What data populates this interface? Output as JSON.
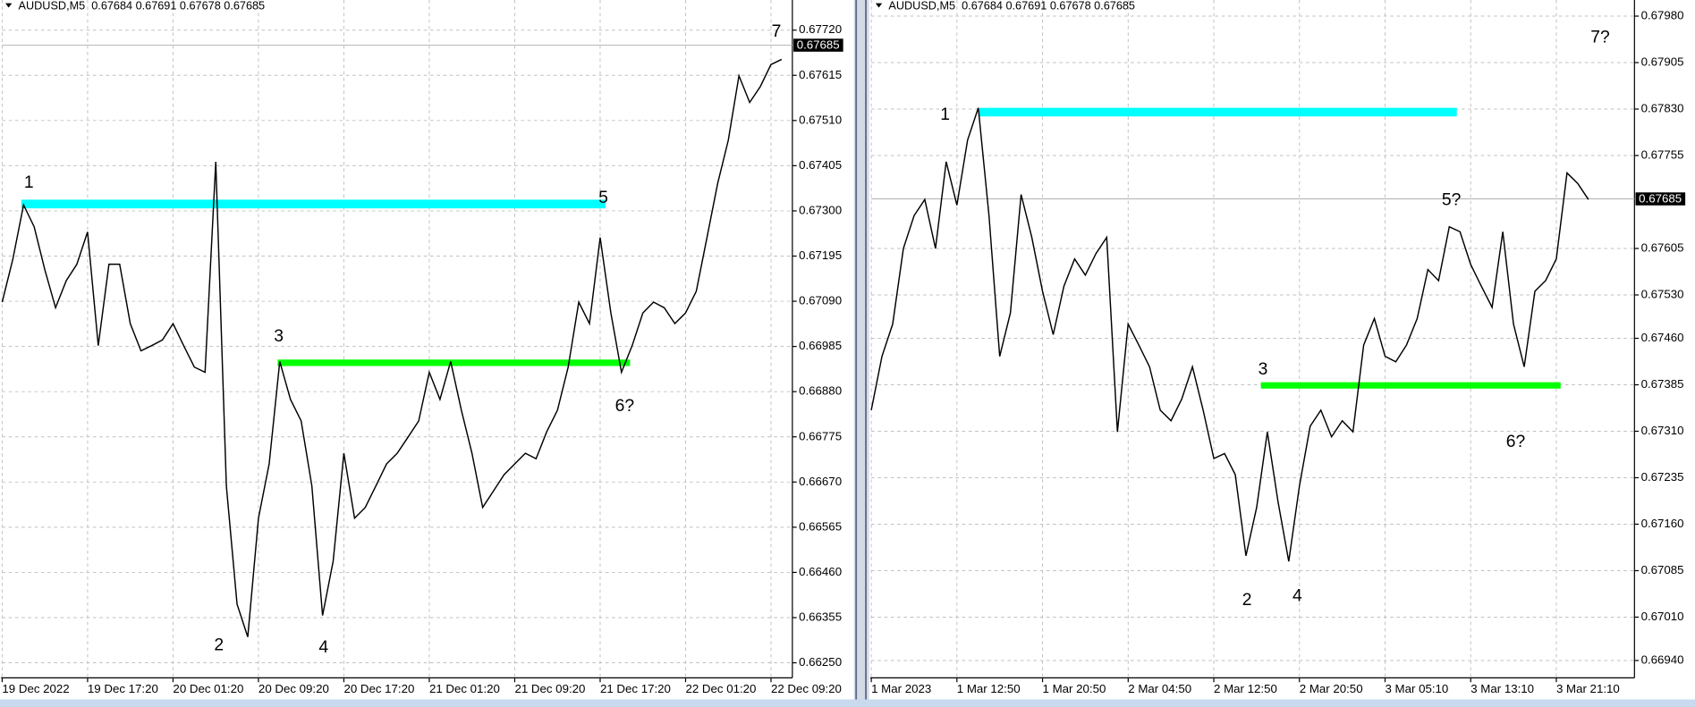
{
  "chart_data": [
    {
      "type": "line",
      "title": "AUDUSD,M5  0.67684 0.67691 0.67678 0.67685",
      "color": "#000000",
      "values": [
        0.67088,
        0.67188,
        0.67314,
        0.67263,
        0.67163,
        0.67075,
        0.67138,
        0.67176,
        0.67251,
        0.66987,
        0.67176,
        0.67176,
        0.67038,
        0.66975,
        0.66987,
        0.67,
        0.67038,
        0.66987,
        0.66937,
        0.66925,
        0.67414,
        0.66661,
        0.66386,
        0.6631,
        0.66586,
        0.66712,
        0.6695,
        0.66862,
        0.66812,
        0.66661,
        0.6636,
        0.66486,
        0.66737,
        0.66586,
        0.66611,
        0.66661,
        0.66712,
        0.66737,
        0.66774,
        0.66812,
        0.66925,
        0.66862,
        0.6695,
        0.66837,
        0.66737,
        0.66611,
        0.66649,
        0.66687,
        0.66712,
        0.66737,
        0.66724,
        0.66787,
        0.66837,
        0.66937,
        0.67088,
        0.67038,
        0.67238,
        0.67063,
        0.66925,
        0.66987,
        0.67063,
        0.67088,
        0.67075,
        0.67038,
        0.67063,
        0.67113,
        0.67238,
        0.67364,
        0.67464,
        0.67614,
        0.67552,
        0.67589,
        0.6764,
        0.67652
      ],
      "xlim": [
        0,
        74
      ],
      "xticks": [
        {
          "value": 0,
          "label": "19 Dec 2022"
        },
        {
          "value": 8,
          "label": "19 Dec 17:20"
        },
        {
          "value": 16,
          "label": "20 Dec 01:20"
        },
        {
          "value": 24,
          "label": "20 Dec 09:20"
        },
        {
          "value": 32,
          "label": "20 Dec 17:20"
        },
        {
          "value": 40,
          "label": "21 Dec 01:20"
        },
        {
          "value": 48,
          "label": "21 Dec 09:20"
        },
        {
          "value": 56,
          "label": "21 Dec 17:20"
        },
        {
          "value": 64,
          "label": "22 Dec 01:20"
        },
        {
          "value": 72,
          "label": "22 Dec 09:20"
        }
      ],
      "ylim": [
        0.66215,
        0.6779
      ],
      "yticks": [
        {
          "value": 0.6772,
          "label": "0.67720"
        },
        0.67615,
        {
          "value": 0.6751,
          "label": "0.67510"
        },
        0.67405,
        {
          "value": 0.673,
          "label": "0.67300"
        },
        0.67195,
        {
          "value": 0.6709,
          "label": "0.67090"
        },
        0.66985,
        {
          "value": 0.6688,
          "label": "0.66880"
        },
        0.66775,
        {
          "value": 0.6667,
          "label": "0.66670"
        },
        0.66565,
        {
          "value": 0.6646,
          "label": "0.66460"
        },
        0.66355,
        {
          "value": 0.6625,
          "label": "0.66250"
        }
      ],
      "grid": true,
      "current_price": 0.67685,
      "levels": [
        {
          "value": 0.67316,
          "x0": 1.8,
          "x1": 56.5,
          "color": "#00ffff"
        },
        {
          "value": 0.66947,
          "x0": 25.8,
          "x1": 58.8,
          "color": "#00ff00"
        }
      ],
      "annotations": [
        {
          "text": "1",
          "x": 2.5,
          "y": 0.67364
        },
        {
          "text": "2",
          "x": 20.3,
          "y": 0.6629
        },
        {
          "text": "3",
          "x": 25.9,
          "y": 0.67007
        },
        {
          "text": "4",
          "x": 30.1,
          "y": 0.66285
        },
        {
          "text": "5",
          "x": 56.3,
          "y": 0.67329
        },
        {
          "text": "6?",
          "x": 58.3,
          "y": 0.66845
        },
        {
          "text": "7",
          "x": 72.5,
          "y": 0.67715
        }
      ]
    },
    {
      "type": "line",
      "title": "AUDUSD,M5  0.67684 0.67691 0.67678 0.67685",
      "color": "#000000",
      "values": [
        0.67344,
        0.67431,
        0.67483,
        0.67605,
        0.67658,
        0.67684,
        0.67605,
        0.67745,
        0.67675,
        0.6778,
        0.67832,
        0.67658,
        0.67431,
        0.67501,
        0.67692,
        0.67623,
        0.67536,
        0.67466,
        0.67544,
        0.67588,
        0.67562,
        0.67597,
        0.67623,
        0.67309,
        0.67483,
        0.67449,
        0.67414,
        0.67344,
        0.67327,
        0.67362,
        0.67414,
        0.67344,
        0.67266,
        0.67274,
        0.6724,
        0.67109,
        0.67187,
        0.67309,
        0.67196,
        0.671,
        0.67222,
        0.67318,
        0.67344,
        0.67301,
        0.67327,
        0.67309,
        0.67449,
        0.67492,
        0.67431,
        0.67422,
        0.67449,
        0.67492,
        0.67571,
        0.67553,
        0.6764,
        0.67632,
        0.67579,
        0.67544,
        0.6751,
        0.67632,
        0.67483,
        0.67414,
        0.67536,
        0.67553,
        0.67588,
        0.67727,
        0.6771,
        0.67684
      ],
      "xlim": [
        0,
        71.3
      ],
      "xticks": [
        {
          "value": 0,
          "label": "1 Mar 2023"
        },
        {
          "value": 8,
          "label": "1 Mar 12:50"
        },
        {
          "value": 16,
          "label": "1 Mar 20:50"
        },
        {
          "value": 24,
          "label": "2 Mar 04:50"
        },
        {
          "value": 32,
          "label": "2 Mar 12:50"
        },
        {
          "value": 40,
          "label": "2 Mar 20:50"
        },
        {
          "value": 48,
          "label": "3 Mar 05:10"
        },
        {
          "value": 56,
          "label": "3 Mar 13:10"
        },
        {
          "value": 64,
          "label": "3 Mar 21:10"
        }
      ],
      "ylim": [
        0.66912,
        0.68006
      ],
      "yticks": [
        {
          "value": 0.6798,
          "label": "0.67980"
        },
        0.67905,
        {
          "value": 0.6783,
          "label": "0.67830"
        },
        0.67755,
        0.67605,
        {
          "value": 0.6753,
          "label": "0.67530"
        },
        {
          "value": 0.6746,
          "label": "0.67460"
        },
        0.67385,
        {
          "value": 0.6731,
          "label": "0.67310"
        },
        0.67235,
        {
          "value": 0.6716,
          "label": "0.67160"
        },
        0.67085,
        {
          "value": 0.6701,
          "label": "0.67010"
        },
        {
          "value": 0.6694,
          "label": "0.66940"
        }
      ],
      "grid": true,
      "current_price": 0.67685,
      "levels": [
        {
          "value": 0.67825,
          "x0": 10.1,
          "x1": 54.7,
          "color": "#00ffff"
        },
        {
          "value": 0.67384,
          "x0": 36.4,
          "x1": 64.4,
          "color": "#00ff00"
        }
      ],
      "annotations": [
        {
          "text": "1",
          "x": 6.9,
          "y": 0.6782
        },
        {
          "text": "2",
          "x": 35.1,
          "y": 0.67037
        },
        {
          "text": "3",
          "x": 36.6,
          "y": 0.67409
        },
        {
          "text": "4",
          "x": 39.8,
          "y": 0.67043
        },
        {
          "text": "5?",
          "x": 54.2,
          "y": 0.67682
        },
        {
          "text": "6?",
          "x": 60.2,
          "y": 0.67292
        },
        {
          "text": "7?",
          "x": 68.1,
          "y": 0.67945
        }
      ]
    }
  ]
}
